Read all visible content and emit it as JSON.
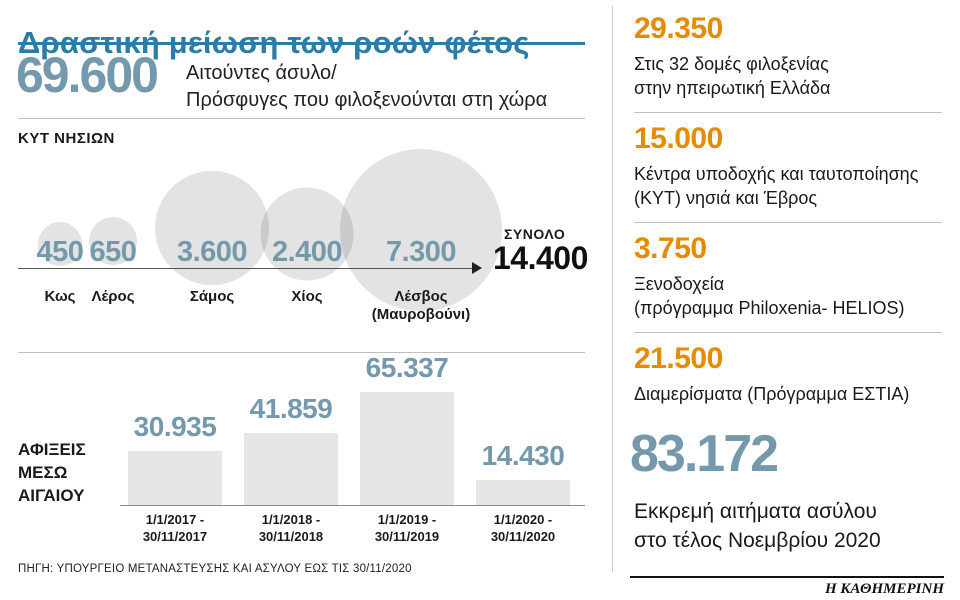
{
  "colors": {
    "title_blue": "#2b7ca6",
    "number_blue": "#7499ad",
    "stat_orange": "#e68b00",
    "circle_gray": "#e3e3e3",
    "bar_gray": "#e6e6e6",
    "text_dark": "#1a1a1a"
  },
  "header": {
    "title": "Δραστική μείωση των ροών φέτος",
    "total_number": "69.600",
    "total_label_line1": "Αιτούντες άσυλο/",
    "total_label_line2": "Πρόσφυγες που φιλοξενούνται στη χώρα"
  },
  "islands": {
    "section_title": "ΚΥΤ ΝΗΣΙΩΝ",
    "items": [
      {
        "name": "Κως",
        "value": "450"
      },
      {
        "name": "Λέρος",
        "value": "650"
      },
      {
        "name": "Σάμος",
        "value": "3.600"
      },
      {
        "name": "Χίος",
        "value": "2.400"
      },
      {
        "name": "Λέσβος",
        "name2": "(Μαυροβούνι)",
        "value": "7.300"
      }
    ],
    "total_label": "ΣΥΝΟΛΟ",
    "total_value": "14.400"
  },
  "arrivals": {
    "label_line1": "ΑΦΙΞΕΙΣ",
    "label_line2": "ΜΕΣΩ",
    "label_line3": "ΑΙΓΑΙΟΥ",
    "bars": [
      {
        "value": "30.935",
        "period_line1": "1/1/2017 -",
        "period_line2": "30/11/2017"
      },
      {
        "value": "41.859",
        "period_line1": "1/1/2018 -",
        "period_line2": "30/11/2018"
      },
      {
        "value": "65.337",
        "period_line1": "1/1/2019 -",
        "period_line2": "30/11/2019"
      },
      {
        "value": "14.430",
        "period_line1": "1/1/2020 -",
        "period_line2": "30/11/2020"
      }
    ]
  },
  "source": "ΠΗΓΗ: ΥΠΟΥΡΓΕΙΟ ΜΕΤΑΝΑΣΤΕΥΣΗΣ ΚΑΙ ΑΣΥΛΟΥ ΕΩΣ ΤΙΣ 30/11/2020",
  "right_column": {
    "items": [
      {
        "value": "29.350",
        "desc_line1": "Στις 32 δομές φιλοξενίας",
        "desc_line2": "στην ηπειρωτική Ελλάδα"
      },
      {
        "value": "15.000",
        "desc_line1": "Κέντρα υποδοχής και ταυτοποίησης",
        "desc_line2": "(ΚΥΤ) νησιά και Έβρος"
      },
      {
        "value": "3.750",
        "desc_line1": "Ξενοδοχεία",
        "desc_line2": "(πρόγραμμα Philoxenia- HELIOS)"
      },
      {
        "value": "21.500",
        "desc_line1": "Διαμερίσματα (Πρόγραμμα ΕΣΤΙΑ)"
      }
    ],
    "pending": {
      "value": "83.172",
      "desc_line1": "Εκκρεμή αιτήματα ασύλου",
      "desc_line2": "στο τέλος Νοεμβρίου 2020"
    }
  },
  "brand": "Η ΚΑΘΗΜΕΡΙΝΗ",
  "chart_data": [
    {
      "type": "bubble",
      "title": "ΚΥΤ ΝΗΣΙΩΝ",
      "categories": [
        "Κως",
        "Λέρος",
        "Σάμος",
        "Χίος",
        "Λέσβος (Μαυροβούνι)"
      ],
      "values": [
        450,
        650,
        3600,
        2400,
        7300
      ],
      "total_label": "ΣΥΝΟΛΟ",
      "total": 14400,
      "note": "circle area proportional to value, values shown over circles"
    },
    {
      "type": "bar",
      "title": "ΑΦΙΞΕΙΣ ΜΕΣΩ ΑΙΓΑΙΟΥ",
      "categories": [
        "1/1/2017 - 30/11/2017",
        "1/1/2018 - 30/11/2018",
        "1/1/2019 - 30/11/2019",
        "1/1/2020 - 30/11/2020"
      ],
      "values": [
        30935,
        41859,
        65337,
        14430
      ],
      "ylim": [
        0,
        65337
      ],
      "grid": false,
      "legend": false,
      "data_labels": [
        "30.935",
        "41.859",
        "65.337",
        "14.430"
      ]
    }
  ]
}
